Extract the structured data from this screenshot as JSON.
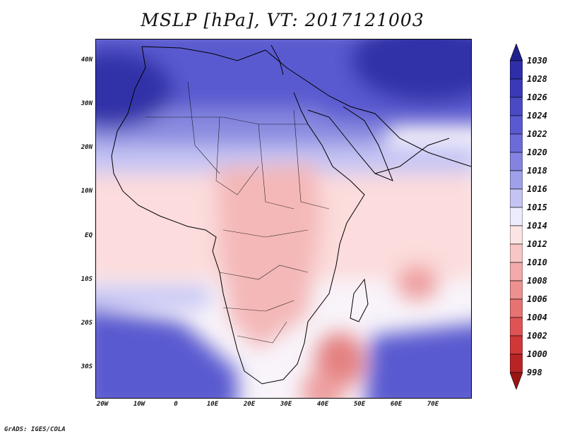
{
  "title": "MSLP [hPa], VT: 2017121003",
  "credit": "GrADS: IGES/COLA",
  "lat_labels": [
    "40N",
    "30N",
    "20N",
    "10N",
    "EQ",
    "10S",
    "20S",
    "30S"
  ],
  "lon_labels": [
    "20W",
    "10W",
    "0",
    "10E",
    "20E",
    "30E",
    "40E",
    "50E",
    "60E",
    "70E"
  ],
  "colorbar": {
    "levels": [
      "1030",
      "1028",
      "1026",
      "1024",
      "1022",
      "1020",
      "1018",
      "1016",
      "1015",
      "1014",
      "1012",
      "1010",
      "1008",
      "1006",
      "1004",
      "1002",
      "1000",
      "998"
    ],
    "colors": [
      "#20208e",
      "#2e2ea8",
      "#3a3ab8",
      "#4a4ac4",
      "#5a5ad0",
      "#6c6cd8",
      "#8484e0",
      "#a0a0ea",
      "#c4c4f4",
      "#ececfc",
      "#fde4e4",
      "#f8c6c6",
      "#f2aaaa",
      "#ec9090",
      "#e67272",
      "#de5454",
      "#d03838",
      "#b82424",
      "#9a1414"
    ]
  },
  "map_colors": {
    "high_strong": "#3030a8",
    "high": "#5a5ad0",
    "high_mid": "#8a8ae0",
    "high_light": "#c4c4f4",
    "neutral": "#f8f4fa",
    "low_light": "#fcdcdc",
    "low": "#f4b8b8",
    "low_mid": "#ee9e9e",
    "low_strong": "#e48080",
    "coast": "#000000"
  }
}
